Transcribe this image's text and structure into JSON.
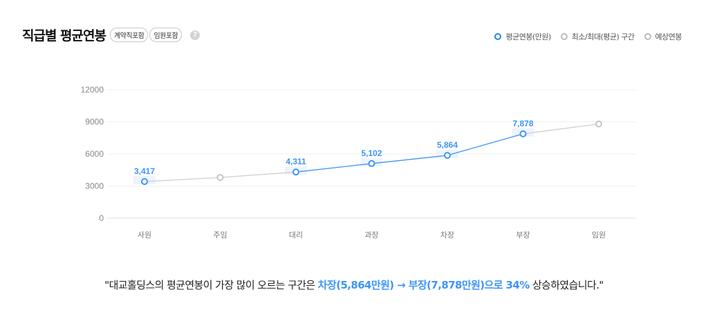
{
  "header": {
    "title": "직급별 평균연봉",
    "tags": [
      "계약직포함",
      "임원포함"
    ],
    "help_icon": "question-circle-icon"
  },
  "legend": [
    {
      "label": "평균연봉(만원)",
      "color": "#1e88e5"
    },
    {
      "label": "최소/최대(평균) 구간",
      "color": "#bbbbbb"
    },
    {
      "label": "예상연봉",
      "color": "#bbbbbb"
    }
  ],
  "chart_data": {
    "type": "line",
    "title": "직급별 평균연봉",
    "categories": [
      "사원",
      "주임",
      "대리",
      "과장",
      "차장",
      "부장",
      "임원"
    ],
    "series": [
      {
        "name": "평균연봉(만원)",
        "values": [
          3417,
          null,
          4311,
          5102,
          5864,
          7878,
          null
        ],
        "color": "#3d95f5"
      },
      {
        "name": "예상연봉",
        "values": [
          null,
          3800,
          null,
          null,
          null,
          null,
          8800
        ],
        "color": "#c8c8c8"
      }
    ],
    "data_labels": [
      "3,417",
      "",
      "4,311",
      "5,102",
      "5,864",
      "7,878",
      ""
    ],
    "yticks": [
      0,
      3000,
      6000,
      9000,
      12000
    ],
    "ylim": [
      0,
      12000
    ],
    "xlabel": "",
    "ylabel": "",
    "grid": true,
    "legend_position": "top-right"
  },
  "summary": {
    "prefix": "\"대교홀딩스의 평균연봉이 가장 많이 오르는 구간은 ",
    "highlight": "차장(5,864만원) → 부장(7,878만원)으로 34%",
    "suffix": " 상승하였습니다.\""
  }
}
